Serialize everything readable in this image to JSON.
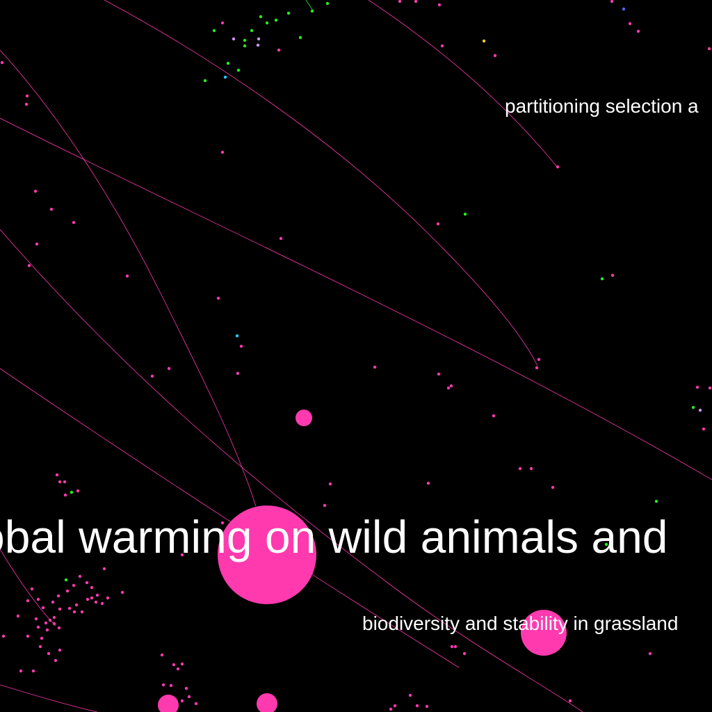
{
  "colors": {
    "background": "#000000",
    "node_primary": "#ff3aaf",
    "node_green": "#22ee22",
    "node_cyan": "#22ccff",
    "node_lavender": "#cc99ff",
    "node_yellow": "#ffcc22",
    "node_blue": "#5566ff",
    "edge": "#ff3aaf",
    "label": "#ffffff"
  },
  "labels": {
    "large": "obal warming on wild animals and",
    "top_right": "partitioning selection a",
    "bottom_right": "biodiversity and stability in grassland"
  }
}
